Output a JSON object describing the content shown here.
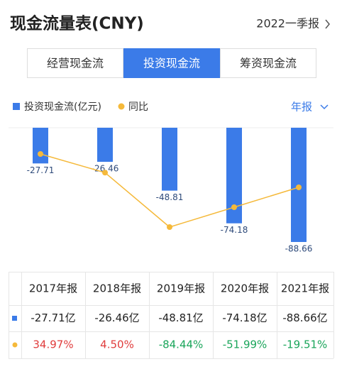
{
  "header": {
    "title": "现金流量表(CNY)",
    "period": "2022一季报"
  },
  "tabs": [
    "经营现金流",
    "投资现金流",
    "筹资现金流"
  ],
  "period_select": "年报",
  "chart_data": {
    "type": "bar",
    "categories": [
      "2017年报",
      "2018年报",
      "2019年报",
      "2020年报",
      "2021年报"
    ],
    "series": [
      {
        "name": "投资现金流(亿元)",
        "type": "bar",
        "color": "#3b7be8",
        "values": [
          -27.71,
          -26.46,
          -48.81,
          -74.18,
          -88.66
        ]
      },
      {
        "name": "同比",
        "type": "line",
        "axis": "y2",
        "color": "#f5b93a",
        "values": [
          34.97,
          4.5,
          -84.44,
          -51.99,
          -19.51
        ]
      }
    ]
  },
  "table": {
    "rows": [
      [
        "-27.71亿",
        "-26.46亿",
        "-48.81亿",
        "-74.18亿",
        "-88.66亿"
      ],
      [
        "34.97%",
        "4.50%",
        "-84.44%",
        "-51.99%",
        "-19.51%"
      ]
    ]
  }
}
